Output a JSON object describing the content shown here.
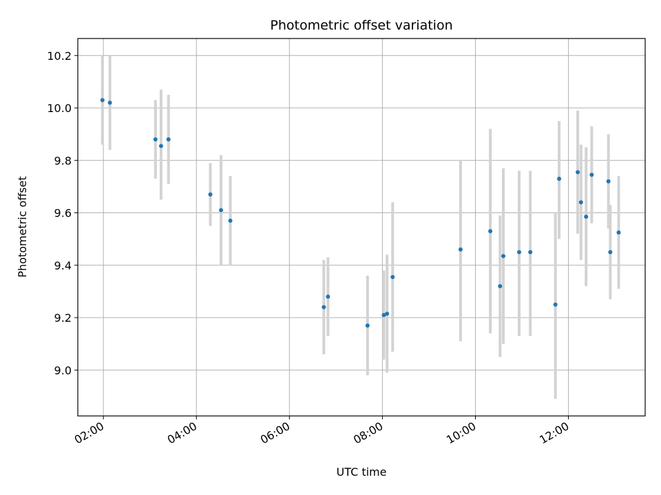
{
  "chart_data": {
    "type": "scatter",
    "title": "Photometric offset variation",
    "xlabel": "UTC time",
    "ylabel": "Photometric offset",
    "grid": true,
    "x_unit": "hours UTC",
    "xlim": [
      1.45,
      13.65
    ],
    "ylim": [
      8.825,
      10.265
    ],
    "x_ticks": [
      {
        "value": 2,
        "label": "02:00"
      },
      {
        "value": 4,
        "label": "04:00"
      },
      {
        "value": 6,
        "label": "06:00"
      },
      {
        "value": 8,
        "label": "08:00"
      },
      {
        "value": 10,
        "label": "10:00"
      },
      {
        "value": 12,
        "label": "12:00"
      }
    ],
    "y_ticks": [
      {
        "value": 9.0,
        "label": "9.0"
      },
      {
        "value": 9.2,
        "label": "9.2"
      },
      {
        "value": 9.4,
        "label": "9.4"
      },
      {
        "value": 9.6,
        "label": "9.6"
      },
      {
        "value": 9.8,
        "label": "9.8"
      },
      {
        "value": 10.0,
        "label": "10.0"
      },
      {
        "value": 10.2,
        "label": "10.2"
      }
    ],
    "colors": {
      "point": "#1f77b4",
      "error_bar": "#d3d3d3"
    },
    "points": [
      {
        "x": 1.98,
        "y": 10.03,
        "err_low": 9.86,
        "err_high": 10.2
      },
      {
        "x": 2.14,
        "y": 10.02,
        "err_low": 9.84,
        "err_high": 10.2
      },
      {
        "x": 3.12,
        "y": 9.88,
        "err_low": 9.73,
        "err_high": 10.03
      },
      {
        "x": 3.24,
        "y": 9.855,
        "err_low": 9.65,
        "err_high": 10.07
      },
      {
        "x": 3.4,
        "y": 9.88,
        "err_low": 9.71,
        "err_high": 10.05
      },
      {
        "x": 4.3,
        "y": 9.67,
        "err_low": 9.55,
        "err_high": 9.79
      },
      {
        "x": 4.53,
        "y": 9.61,
        "err_low": 9.4,
        "err_high": 9.82
      },
      {
        "x": 4.73,
        "y": 9.57,
        "err_low": 9.4,
        "err_high": 9.74
      },
      {
        "x": 6.74,
        "y": 9.24,
        "err_low": 9.06,
        "err_high": 9.42
      },
      {
        "x": 6.83,
        "y": 9.28,
        "err_low": 9.13,
        "err_high": 9.43
      },
      {
        "x": 7.68,
        "y": 9.17,
        "err_low": 8.98,
        "err_high": 9.36
      },
      {
        "x": 8.03,
        "y": 9.21,
        "err_low": 9.04,
        "err_high": 9.38
      },
      {
        "x": 8.1,
        "y": 9.215,
        "err_low": 8.99,
        "err_high": 9.44
      },
      {
        "x": 8.22,
        "y": 9.355,
        "err_low": 9.07,
        "err_high": 9.64
      },
      {
        "x": 9.68,
        "y": 9.46,
        "err_low": 9.11,
        "err_high": 9.8
      },
      {
        "x": 10.32,
        "y": 9.53,
        "err_low": 9.14,
        "err_high": 9.92
      },
      {
        "x": 10.53,
        "y": 9.32,
        "err_low": 9.05,
        "err_high": 9.59
      },
      {
        "x": 10.6,
        "y": 9.435,
        "err_low": 9.1,
        "err_high": 9.77
      },
      {
        "x": 10.94,
        "y": 9.45,
        "err_low": 9.13,
        "err_high": 9.76
      },
      {
        "x": 11.18,
        "y": 9.45,
        "err_low": 9.13,
        "err_high": 9.76
      },
      {
        "x": 11.72,
        "y": 9.25,
        "err_low": 8.89,
        "err_high": 9.6
      },
      {
        "x": 11.8,
        "y": 9.73,
        "err_low": 9.5,
        "err_high": 9.95
      },
      {
        "x": 12.2,
        "y": 9.755,
        "err_low": 9.52,
        "err_high": 9.99
      },
      {
        "x": 12.27,
        "y": 9.64,
        "err_low": 9.42,
        "err_high": 9.86
      },
      {
        "x": 12.38,
        "y": 9.585,
        "err_low": 9.32,
        "err_high": 9.85
      },
      {
        "x": 12.5,
        "y": 9.745,
        "err_low": 9.56,
        "err_high": 9.93
      },
      {
        "x": 12.86,
        "y": 9.72,
        "err_low": 9.54,
        "err_high": 9.9
      },
      {
        "x": 12.9,
        "y": 9.45,
        "err_low": 9.27,
        "err_high": 9.63
      },
      {
        "x": 13.08,
        "y": 9.525,
        "err_low": 9.31,
        "err_high": 9.74
      }
    ]
  }
}
